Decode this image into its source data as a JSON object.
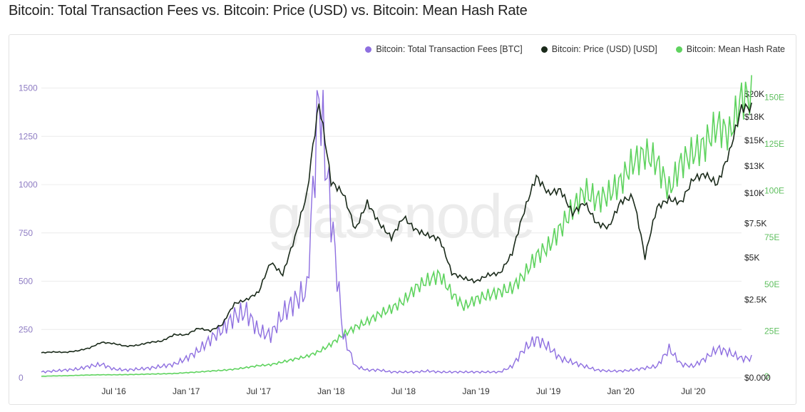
{
  "page": {
    "title": "Bitcoin: Total Transaction Fees vs. Bitcoin: Price (USD) vs. Bitcoin: Mean Hash Rate",
    "watermark": "glassnode"
  },
  "legend": [
    {
      "label": "Bitcoin: Total Transaction Fees [BTC]",
      "color": "#8e6fe0"
    },
    {
      "label": "Bitcoin: Price (USD) [USD]",
      "color": "#1a2a1a"
    },
    {
      "label": "Bitcoin: Mean Hash Rate",
      "color": "#5fd35f"
    }
  ],
  "chart_data": {
    "type": "line",
    "title": "Bitcoin: Total Transaction Fees vs. Bitcoin: Price (USD) vs. Bitcoin: Mean Hash Rate",
    "x_ticks": [
      "Jul '16",
      "Jan '17",
      "Jul '17",
      "Jan '18",
      "Jul '18",
      "Jan '19",
      "Jul '19",
      "Jan '20",
      "Jul '20"
    ],
    "x_range": [
      "2016-01",
      "2020-11"
    ],
    "axes": {
      "fees": {
        "side": "left",
        "range": [
          0,
          1550
        ],
        "ticks": [
          "0",
          "250",
          "500",
          "750",
          "1000",
          "1250",
          "1500"
        ],
        "color": "#8e7cc3"
      },
      "price": {
        "side": "right",
        "scale": "log",
        "ticks": [
          "$0.000",
          "$2.5K",
          "$5K",
          "$7.5K",
          "$10K",
          "$13K",
          "$15K",
          "$18K",
          "$20K"
        ],
        "color": "#222222"
      },
      "hashrate": {
        "side": "right",
        "range": [
          0,
          160
        ],
        "ticks": [
          "25E",
          "50E",
          "75E",
          "100E",
          "125E",
          "150E"
        ],
        "color": "#5fbf5f"
      }
    },
    "grid": true,
    "legend_position": "top-right",
    "series": [
      {
        "name": "Bitcoin: Total Transaction Fees [BTC]",
        "axis": "fees",
        "color": "#8e6fe0",
        "x": [
          "2016-01",
          "2016-02",
          "2016-03",
          "2016-04",
          "2016-05",
          "2016-06",
          "2016-07",
          "2016-08",
          "2016-09",
          "2016-10",
          "2016-11",
          "2016-12",
          "2017-01",
          "2017-02",
          "2017-03",
          "2017-04",
          "2017-05",
          "2017-06",
          "2017-07",
          "2017-08",
          "2017-09",
          "2017-10",
          "2017-11",
          "2017-12",
          "2018-01",
          "2018-02",
          "2018-03",
          "2018-04",
          "2018-05",
          "2018-06",
          "2018-07",
          "2018-08",
          "2018-09",
          "2018-10",
          "2018-11",
          "2018-12",
          "2019-01",
          "2019-02",
          "2019-03",
          "2019-04",
          "2019-05",
          "2019-06",
          "2019-07",
          "2019-08",
          "2019-09",
          "2019-10",
          "2019-11",
          "2019-12",
          "2020-01",
          "2020-02",
          "2020-03",
          "2020-04",
          "2020-05",
          "2020-06",
          "2020-07",
          "2020-08",
          "2020-09",
          "2020-10",
          "2020-11"
        ],
        "values": [
          30,
          35,
          40,
          45,
          60,
          70,
          45,
          40,
          45,
          50,
          60,
          70,
          100,
          140,
          200,
          250,
          320,
          340,
          240,
          220,
          330,
          400,
          450,
          1470,
          850,
          220,
          60,
          40,
          40,
          30,
          30,
          30,
          35,
          30,
          30,
          30,
          30,
          30,
          30,
          60,
          150,
          200,
          160,
          100,
          80,
          60,
          40,
          35,
          35,
          40,
          50,
          60,
          150,
          70,
          60,
          100,
          150,
          130,
          100
        ]
      },
      {
        "name": "Bitcoin: Price (USD) [USD]",
        "axis": "price",
        "color": "#1a2a1a",
        "x": [
          "2016-01",
          "2016-02",
          "2016-03",
          "2016-04",
          "2016-05",
          "2016-06",
          "2016-07",
          "2016-08",
          "2016-09",
          "2016-10",
          "2016-11",
          "2016-12",
          "2017-01",
          "2017-02",
          "2017-03",
          "2017-04",
          "2017-05",
          "2017-06",
          "2017-07",
          "2017-08",
          "2017-09",
          "2017-10",
          "2017-11",
          "2017-12",
          "2018-01",
          "2018-02",
          "2018-03",
          "2018-04",
          "2018-05",
          "2018-06",
          "2018-07",
          "2018-08",
          "2018-09",
          "2018-10",
          "2018-11",
          "2018-12",
          "2019-01",
          "2019-02",
          "2019-03",
          "2019-04",
          "2019-05",
          "2019-06",
          "2019-07",
          "2019-08",
          "2019-09",
          "2019-10",
          "2019-11",
          "2019-12",
          "2020-01",
          "2020-02",
          "2020-03",
          "2020-04",
          "2020-05",
          "2020-06",
          "2020-07",
          "2020-08",
          "2020-09",
          "2020-10",
          "2020-11"
        ],
        "values": [
          400,
          420,
          410,
          450,
          530,
          700,
          660,
          580,
          610,
          700,
          740,
          960,
          950,
          1200,
          1100,
          1350,
          2300,
          2500,
          2900,
          4700,
          3900,
          6400,
          9900,
          19000,
          11000,
          10000,
          7000,
          9200,
          7500,
          6400,
          8000,
          7000,
          6600,
          6300,
          4000,
          3700,
          3500,
          3900,
          4000,
          5300,
          8500,
          11500,
          10000,
          10300,
          8300,
          9200,
          7500,
          7200,
          9300,
          9700,
          5000,
          8800,
          9500,
          9200,
          11300,
          11700,
          10800,
          13800,
          18500
        ]
      },
      {
        "name": "Bitcoin: Mean Hash Rate",
        "axis": "hashrate",
        "color": "#5fd35f",
        "x": [
          "2016-01",
          "2016-02",
          "2016-03",
          "2016-04",
          "2016-05",
          "2016-06",
          "2016-07",
          "2016-08",
          "2016-09",
          "2016-10",
          "2016-11",
          "2016-12",
          "2017-01",
          "2017-02",
          "2017-03",
          "2017-04",
          "2017-05",
          "2017-06",
          "2017-07",
          "2017-08",
          "2017-09",
          "2017-10",
          "2017-11",
          "2017-12",
          "2018-01",
          "2018-02",
          "2018-03",
          "2018-04",
          "2018-05",
          "2018-06",
          "2018-07",
          "2018-08",
          "2018-09",
          "2018-10",
          "2018-11",
          "2018-12",
          "2019-01",
          "2019-02",
          "2019-03",
          "2019-04",
          "2019-05",
          "2019-06",
          "2019-07",
          "2019-08",
          "2019-09",
          "2019-10",
          "2019-11",
          "2019-12",
          "2020-01",
          "2020-02",
          "2020-03",
          "2020-04",
          "2020-05",
          "2020-06",
          "2020-07",
          "2020-08",
          "2020-09",
          "2020-10",
          "2020-11"
        ],
        "values": [
          0.8,
          1.0,
          1.1,
          1.3,
          1.5,
          1.6,
          1.6,
          1.7,
          1.8,
          2.0,
          2.1,
          2.3,
          2.7,
          3.1,
          3.6,
          4.0,
          4.6,
          5.5,
          6.5,
          7.0,
          8.5,
          10,
          11.5,
          14,
          18,
          23,
          27,
          30,
          34,
          37,
          41,
          48,
          52,
          55,
          45,
          38,
          42,
          44,
          46,
          48,
          55,
          65,
          70,
          80,
          90,
          100,
          95,
          98,
          105,
          115,
          120,
          115,
          100,
          115,
          120,
          125,
          135,
          130,
          150
        ]
      }
    ]
  }
}
